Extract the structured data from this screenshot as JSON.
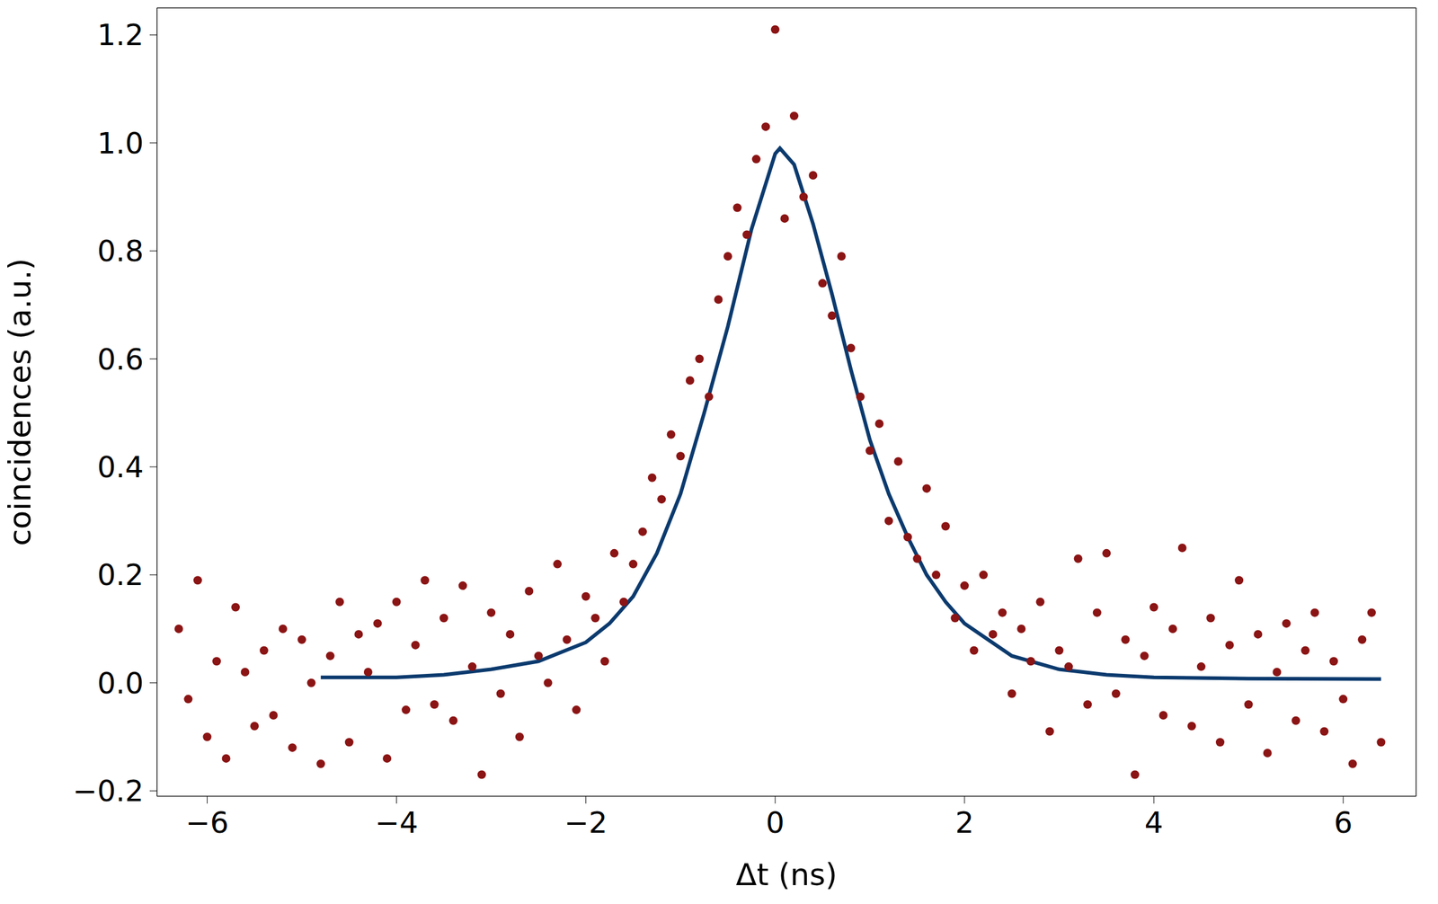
{
  "chart_data": {
    "type": "scatter",
    "x_label": "Δt (ns)",
    "y_label": "coincidences (a.u.)",
    "xlim": [
      -6.53,
      6.77
    ],
    "ylim": [
      -0.21,
      1.25
    ],
    "xticks": [
      {
        "value": -6,
        "label": "−6"
      },
      {
        "value": -4,
        "label": "−4"
      },
      {
        "value": -2,
        "label": "−2"
      },
      0,
      2,
      4,
      6
    ],
    "yticks": [
      {
        "value": -0.2,
        "label": "−0.2"
      },
      {
        "value": 0,
        "label": "0.0"
      },
      0.2,
      0.4,
      0.6,
      0.8,
      {
        "value": 1,
        "label": "1.0"
      },
      1.2
    ],
    "grid": true,
    "series": [
      {
        "type": "scatter",
        "color": "#8b1414",
        "marker": "circle",
        "x": [
          -6.3,
          -6.2,
          -6.1,
          -6.0,
          -5.9,
          -5.8,
          -5.7,
          -5.6,
          -5.5,
          -5.4,
          -5.3,
          -5.2,
          -5.1,
          -5.0,
          -4.9,
          -4.8,
          -4.7,
          -4.6,
          -4.5,
          -4.4,
          -4.3,
          -4.2,
          -4.1,
          -4.0,
          -3.9,
          -3.8,
          -3.7,
          -3.6,
          -3.5,
          -3.4,
          -3.3,
          -3.2,
          -3.1,
          -3.0,
          -2.9,
          -2.8,
          -2.7,
          -2.6,
          -2.5,
          -2.4,
          -2.3,
          -2.2,
          -2.1,
          -2.0,
          -1.9,
          -1.8,
          -1.7,
          -1.6,
          -1.5,
          -1.4,
          -1.3,
          -1.2,
          -1.1,
          -1.0,
          -0.9,
          -0.8,
          -0.7,
          -0.6,
          -0.5,
          -0.4,
          -0.3,
          -0.2,
          -0.1,
          0,
          0.1,
          0.2,
          0.3,
          0.4,
          0.5,
          0.6,
          0.7,
          0.8,
          0.9,
          1.0,
          1.1,
          1.2,
          1.3,
          1.4,
          1.5,
          1.6,
          1.7,
          1.8,
          1.9,
          2.0,
          2.1,
          2.2,
          2.3,
          2.4,
          2.5,
          2.6,
          2.7,
          2.8,
          2.9,
          3.0,
          3.1,
          3.2,
          3.3,
          3.4,
          3.5,
          3.6,
          3.7,
          3.8,
          3.9,
          4.0,
          4.1,
          4.2,
          4.3,
          4.4,
          4.5,
          4.6,
          4.7,
          4.8,
          4.9,
          5.0,
          5.1,
          5.2,
          5.3,
          5.4,
          5.5,
          5.6,
          5.7,
          5.8,
          5.9,
          6.0,
          6.1,
          6.2,
          6.3,
          6.4
        ],
        "values": [
          0.1,
          -0.03,
          0.19,
          -0.1,
          0.04,
          -0.14,
          0.14,
          0.02,
          -0.08,
          0.06,
          -0.06,
          0.1,
          -0.12,
          0.08,
          0.0,
          -0.15,
          0.05,
          0.15,
          -0.11,
          0.09,
          0.02,
          0.11,
          -0.14,
          0.15,
          -0.05,
          0.07,
          0.19,
          -0.04,
          0.12,
          -0.07,
          0.18,
          0.03,
          -0.17,
          0.13,
          -0.02,
          0.09,
          -0.1,
          0.17,
          0.05,
          0.0,
          0.22,
          0.08,
          -0.05,
          0.16,
          0.12,
          0.04,
          0.24,
          0.15,
          0.22,
          0.28,
          0.38,
          0.34,
          0.46,
          0.42,
          0.56,
          0.6,
          0.53,
          0.71,
          0.79,
          0.88,
          0.83,
          0.97,
          1.03,
          1.21,
          0.86,
          1.05,
          0.9,
          0.94,
          0.74,
          0.68,
          0.79,
          0.62,
          0.53,
          0.43,
          0.48,
          0.3,
          0.41,
          0.27,
          0.23,
          0.36,
          0.2,
          0.29,
          0.12,
          0.18,
          0.06,
          0.2,
          0.09,
          0.13,
          -0.02,
          0.1,
          0.04,
          0.15,
          -0.09,
          0.06,
          0.03,
          0.23,
          -0.04,
          0.13,
          0.24,
          -0.02,
          0.08,
          -0.17,
          0.05,
          0.14,
          -0.06,
          0.1,
          0.25,
          -0.08,
          0.03,
          0.12,
          -0.11,
          0.07,
          0.19,
          -0.04,
          0.09,
          -0.13,
          0.02,
          0.11,
          -0.07,
          0.06,
          0.13,
          -0.09,
          0.04,
          -0.03,
          -0.15,
          0.08,
          0.13,
          -0.11
        ]
      },
      {
        "type": "line",
        "color": "#0b3a6e",
        "line_style": "solid",
        "x": [
          -4.8,
          -4.0,
          -3.5,
          -3.0,
          -2.5,
          -2.0,
          -1.75,
          -1.5,
          -1.25,
          -1.0,
          -0.75,
          -0.5,
          -0.25,
          0,
          0.05,
          0.2,
          0.4,
          0.6,
          0.8,
          1.0,
          1.2,
          1.4,
          1.6,
          1.8,
          2.0,
          2.5,
          3.0,
          3.5,
          4.0,
          5.0,
          6.4
        ],
        "values": [
          0.01,
          0.01,
          0.015,
          0.025,
          0.04,
          0.075,
          0.11,
          0.16,
          0.24,
          0.35,
          0.5,
          0.66,
          0.84,
          0.98,
          0.99,
          0.96,
          0.85,
          0.72,
          0.58,
          0.45,
          0.35,
          0.27,
          0.2,
          0.15,
          0.11,
          0.05,
          0.025,
          0.015,
          0.01,
          0.008,
          0.007
        ]
      }
    ]
  }
}
